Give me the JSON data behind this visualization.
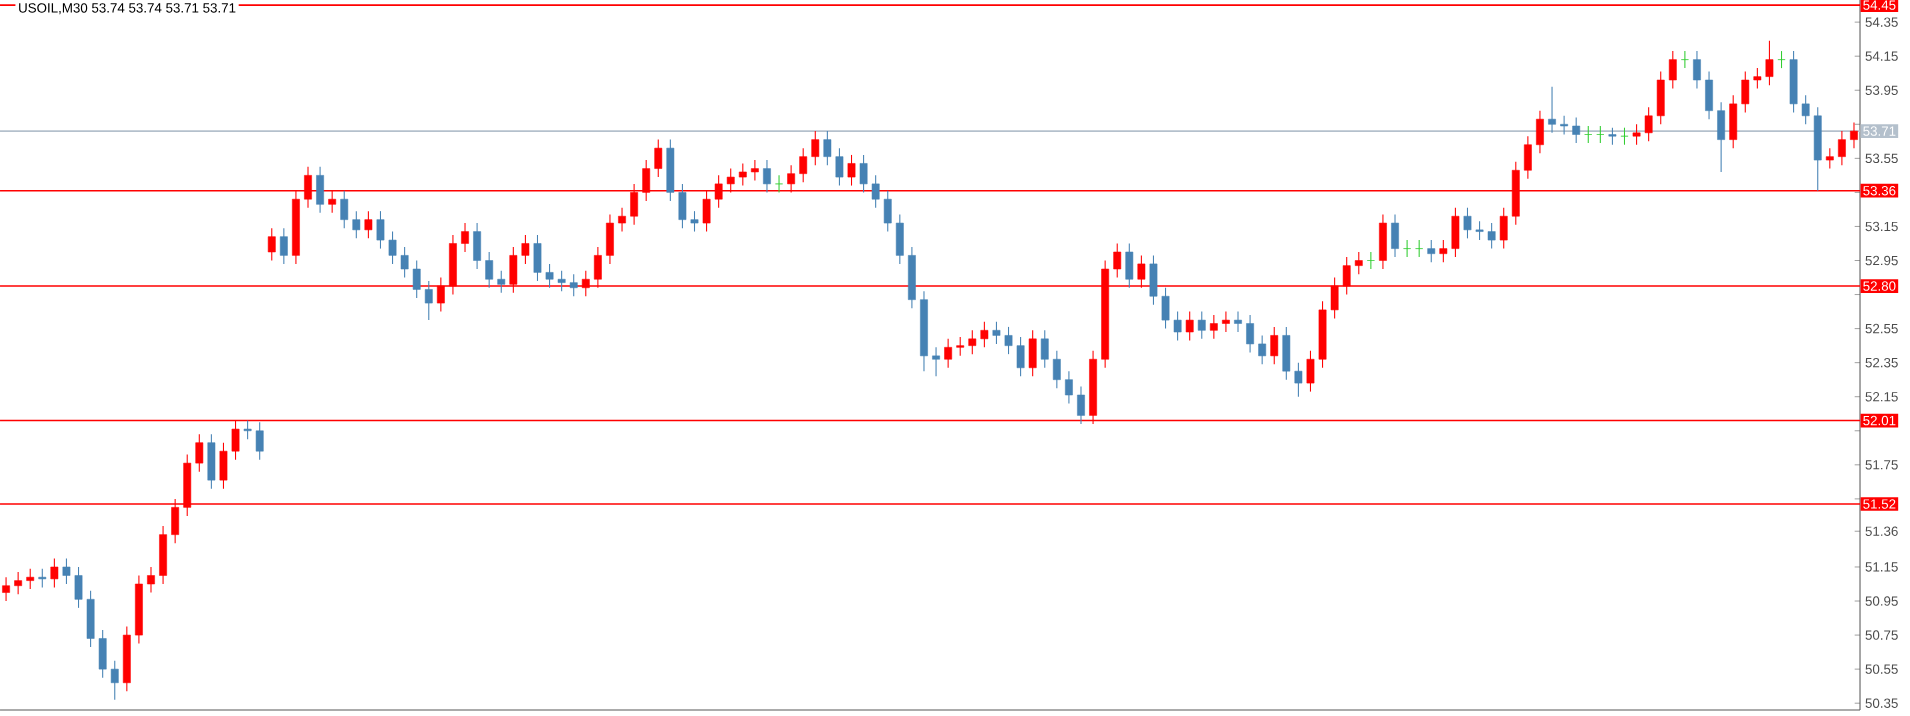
{
  "chart_data": {
    "type": "candlestick",
    "title": "USOIL,M30  53.74 53.74 53.71 53.71",
    "categories": [
      null,
      null,
      null,
      null,
      null,
      null,
      null,
      null,
      null,
      null,
      null,
      null,
      null,
      null,
      null,
      null,
      null,
      null,
      null,
      null,
      null,
      null,
      null,
      null,
      null,
      null,
      null,
      null,
      null,
      null,
      null,
      null,
      null,
      null,
      null,
      null,
      null,
      null,
      null,
      null,
      null,
      null,
      null,
      null,
      null,
      null,
      null,
      null,
      null,
      null,
      null,
      null,
      null,
      null,
      null,
      null,
      null,
      null,
      null,
      null,
      null,
      null,
      null,
      null,
      null,
      null,
      null,
      null,
      null,
      null,
      null,
      null,
      null,
      null,
      null,
      null,
      null,
      null,
      null,
      null,
      null,
      null,
      null,
      null,
      null,
      null,
      null,
      null,
      null,
      null,
      null,
      null,
      null,
      null,
      null,
      null,
      null,
      null,
      null,
      null,
      null,
      null,
      null,
      null,
      null,
      null,
      null,
      null,
      null,
      null,
      null,
      null,
      null,
      null,
      null,
      null,
      null,
      null,
      null,
      null,
      null,
      null,
      null,
      null,
      null,
      null,
      null,
      null,
      null,
      null,
      null,
      null,
      null,
      null,
      null,
      null,
      null,
      null,
      null,
      null,
      null,
      null,
      null,
      null,
      null,
      null,
      null,
      null,
      null,
      null,
      null,
      null,
      null,
      null
    ],
    "ohlc": [
      [
        51.0,
        51.09,
        50.95,
        51.04
      ],
      [
        51.04,
        51.12,
        50.99,
        51.07
      ],
      [
        51.07,
        51.14,
        51.02,
        51.09
      ],
      [
        51.09,
        51.14,
        51.03,
        51.08
      ],
      [
        51.08,
        51.2,
        51.03,
        51.15
      ],
      [
        51.15,
        51.2,
        51.05,
        51.1
      ],
      [
        51.1,
        51.15,
        50.91,
        50.96
      ],
      [
        50.96,
        51.01,
        50.68,
        50.73
      ],
      [
        50.73,
        50.78,
        50.5,
        50.55
      ],
      [
        50.55,
        50.6,
        50.37,
        50.47
      ],
      [
        50.47,
        50.8,
        50.42,
        50.75
      ],
      [
        50.75,
        51.1,
        50.7,
        51.05
      ],
      [
        51.05,
        51.15,
        51.0,
        51.1
      ],
      [
        51.1,
        51.39,
        51.05,
        51.34
      ],
      [
        51.34,
        51.55,
        51.29,
        51.5
      ],
      [
        51.5,
        51.81,
        51.45,
        51.76
      ],
      [
        51.76,
        51.93,
        51.71,
        51.88
      ],
      [
        51.88,
        51.93,
        51.61,
        51.66
      ],
      [
        51.66,
        51.88,
        51.61,
        51.83
      ],
      [
        51.83,
        52.01,
        51.78,
        51.96
      ],
      [
        51.96,
        52.01,
        51.9,
        51.95
      ],
      [
        51.95,
        52.0,
        51.78,
        51.83
      ],
      [
        53.0,
        53.14,
        52.95,
        53.09
      ],
      [
        53.09,
        53.14,
        52.93,
        52.98
      ],
      [
        52.98,
        53.36,
        52.93,
        53.31
      ],
      [
        53.31,
        53.5,
        53.26,
        53.45
      ],
      [
        53.45,
        53.5,
        53.23,
        53.28
      ],
      [
        53.28,
        53.36,
        53.23,
        53.31
      ],
      [
        53.31,
        53.36,
        53.14,
        53.19
      ],
      [
        53.19,
        53.24,
        53.08,
        53.13
      ],
      [
        53.13,
        53.24,
        53.08,
        53.19
      ],
      [
        53.19,
        53.24,
        53.02,
        53.07
      ],
      [
        53.07,
        53.12,
        52.93,
        52.98
      ],
      [
        52.98,
        53.03,
        52.85,
        52.9
      ],
      [
        52.9,
        52.95,
        52.73,
        52.78
      ],
      [
        52.78,
        52.83,
        52.6,
        52.7
      ],
      [
        52.7,
        52.85,
        52.65,
        52.8
      ],
      [
        52.8,
        53.1,
        52.75,
        53.05
      ],
      [
        53.05,
        53.17,
        53.0,
        53.12
      ],
      [
        53.12,
        53.17,
        52.9,
        52.95
      ],
      [
        52.95,
        53.0,
        52.79,
        52.84
      ],
      [
        52.84,
        52.89,
        52.76,
        52.81
      ],
      [
        52.81,
        53.03,
        52.76,
        52.98
      ],
      [
        52.98,
        53.1,
        52.93,
        53.05
      ],
      [
        53.05,
        53.1,
        52.83,
        52.88
      ],
      [
        52.88,
        52.93,
        52.79,
        52.84
      ],
      [
        52.84,
        52.89,
        52.77,
        52.82
      ],
      [
        52.82,
        52.87,
        52.74,
        52.79
      ],
      [
        52.79,
        52.89,
        52.74,
        52.84
      ],
      [
        52.84,
        53.03,
        52.79,
        52.98
      ],
      [
        52.98,
        53.22,
        52.93,
        53.17
      ],
      [
        53.17,
        53.26,
        53.12,
        53.21
      ],
      [
        53.21,
        53.4,
        53.16,
        53.35
      ],
      [
        53.35,
        53.54,
        53.3,
        53.49
      ],
      [
        53.49,
        53.66,
        53.44,
        53.61
      ],
      [
        53.61,
        53.66,
        53.3,
        53.35
      ],
      [
        53.35,
        53.4,
        53.14,
        53.19
      ],
      [
        53.19,
        53.24,
        53.12,
        53.17
      ],
      [
        53.17,
        53.36,
        53.12,
        53.31
      ],
      [
        53.31,
        53.45,
        53.26,
        53.4
      ],
      [
        53.4,
        53.49,
        53.35,
        53.44
      ],
      [
        53.44,
        53.52,
        53.39,
        53.47
      ],
      [
        53.47,
        53.54,
        53.42,
        53.49
      ],
      [
        53.49,
        53.54,
        53.35,
        53.4
      ],
      [
        53.4,
        53.45,
        53.35,
        53.4
      ],
      [
        53.4,
        53.51,
        53.35,
        53.46
      ],
      [
        53.46,
        53.61,
        53.41,
        53.56
      ],
      [
        53.56,
        53.71,
        53.51,
        53.66
      ],
      [
        53.66,
        53.71,
        53.51,
        53.56
      ],
      [
        53.56,
        53.61,
        53.39,
        53.44
      ],
      [
        53.44,
        53.57,
        53.39,
        53.52
      ],
      [
        53.52,
        53.57,
        53.35,
        53.4
      ],
      [
        53.4,
        53.45,
        53.26,
        53.31
      ],
      [
        53.31,
        53.36,
        53.12,
        53.17
      ],
      [
        53.17,
        53.22,
        52.93,
        52.98
      ],
      [
        52.98,
        53.03,
        52.67,
        52.72
      ],
      [
        52.72,
        52.77,
        52.3,
        52.39
      ],
      [
        52.39,
        52.44,
        52.27,
        52.37
      ],
      [
        52.37,
        52.49,
        52.32,
        52.44
      ],
      [
        52.44,
        52.5,
        52.39,
        52.45
      ],
      [
        52.45,
        52.54,
        52.4,
        52.49
      ],
      [
        52.49,
        52.59,
        52.44,
        52.54
      ],
      [
        52.54,
        52.59,
        52.46,
        52.51
      ],
      [
        52.51,
        52.56,
        52.4,
        52.45
      ],
      [
        52.45,
        52.5,
        52.27,
        52.32
      ],
      [
        52.32,
        52.54,
        52.27,
        52.49
      ],
      [
        52.49,
        52.54,
        52.32,
        52.37
      ],
      [
        52.37,
        52.42,
        52.2,
        52.25
      ],
      [
        52.25,
        52.3,
        52.11,
        52.16
      ],
      [
        52.16,
        52.21,
        51.99,
        52.04
      ],
      [
        52.04,
        52.42,
        51.99,
        52.37
      ],
      [
        52.37,
        52.95,
        52.32,
        52.9
      ],
      [
        52.9,
        53.05,
        52.85,
        53.0
      ],
      [
        53.0,
        53.05,
        52.79,
        52.84
      ],
      [
        52.84,
        52.98,
        52.79,
        52.93
      ],
      [
        52.93,
        52.98,
        52.69,
        52.74
      ],
      [
        52.74,
        52.79,
        52.55,
        52.6
      ],
      [
        52.6,
        52.65,
        52.48,
        52.53
      ],
      [
        52.53,
        52.65,
        52.48,
        52.6
      ],
      [
        52.6,
        52.65,
        52.49,
        52.54
      ],
      [
        52.54,
        52.63,
        52.49,
        52.58
      ],
      [
        52.58,
        52.65,
        52.53,
        52.6
      ],
      [
        52.6,
        52.65,
        52.53,
        52.58
      ],
      [
        52.58,
        52.63,
        52.41,
        52.46
      ],
      [
        52.46,
        52.51,
        52.34,
        52.39
      ],
      [
        52.39,
        52.56,
        52.34,
        52.51
      ],
      [
        52.51,
        52.56,
        52.25,
        52.3
      ],
      [
        52.3,
        52.35,
        52.15,
        52.23
      ],
      [
        52.23,
        52.42,
        52.18,
        52.37
      ],
      [
        52.37,
        52.71,
        52.32,
        52.66
      ],
      [
        52.66,
        52.85,
        52.61,
        52.8
      ],
      [
        52.8,
        52.97,
        52.75,
        52.92
      ],
      [
        52.92,
        53.0,
        52.87,
        52.95
      ],
      [
        52.95,
        53.0,
        52.9,
        52.95
      ],
      [
        52.95,
        53.22,
        52.9,
        53.17
      ],
      [
        53.17,
        53.22,
        52.97,
        53.02
      ],
      [
        53.02,
        53.07,
        52.97,
        53.02
      ],
      [
        53.02,
        53.07,
        52.97,
        53.02
      ],
      [
        53.02,
        53.07,
        52.94,
        52.99
      ],
      [
        52.99,
        53.07,
        52.94,
        53.02
      ],
      [
        53.02,
        53.26,
        52.97,
        53.21
      ],
      [
        53.21,
        53.26,
        53.08,
        53.13
      ],
      [
        53.13,
        53.18,
        53.07,
        53.12
      ],
      [
        53.12,
        53.17,
        53.02,
        53.07
      ],
      [
        53.07,
        53.26,
        53.02,
        53.21
      ],
      [
        53.21,
        53.53,
        53.16,
        53.48
      ],
      [
        53.48,
        53.68,
        53.43,
        53.63
      ],
      [
        53.63,
        53.83,
        53.58,
        53.78
      ],
      [
        53.78,
        53.97,
        53.7,
        53.75
      ],
      [
        53.75,
        53.8,
        53.69,
        53.74
      ],
      [
        53.74,
        53.79,
        53.64,
        53.69
      ],
      [
        53.69,
        53.74,
        53.64,
        53.69
      ],
      [
        53.69,
        53.74,
        53.64,
        53.69
      ],
      [
        53.69,
        53.73,
        53.63,
        53.68
      ],
      [
        53.68,
        53.73,
        53.63,
        53.68
      ],
      [
        53.68,
        53.75,
        53.63,
        53.7
      ],
      [
        53.7,
        53.85,
        53.65,
        53.8
      ],
      [
        53.8,
        54.06,
        53.75,
        54.01
      ],
      [
        54.01,
        54.18,
        53.96,
        54.13
      ],
      [
        54.13,
        54.18,
        54.08,
        54.13
      ],
      [
        54.13,
        54.18,
        53.96,
        54.01
      ],
      [
        54.01,
        54.06,
        53.78,
        53.83
      ],
      [
        53.83,
        53.88,
        53.47,
        53.66
      ],
      [
        53.66,
        53.92,
        53.61,
        53.87
      ],
      [
        53.87,
        54.06,
        53.82,
        54.01
      ],
      [
        54.01,
        54.08,
        53.96,
        54.03
      ],
      [
        54.03,
        54.24,
        53.98,
        54.13
      ],
      [
        54.13,
        54.18,
        54.08,
        54.13
      ],
      [
        54.13,
        54.18,
        53.82,
        53.87
      ],
      [
        53.87,
        53.92,
        53.75,
        53.8
      ],
      [
        53.8,
        53.85,
        53.36,
        53.54
      ],
      [
        53.54,
        53.61,
        53.49,
        53.56
      ],
      [
        53.56,
        53.71,
        53.51,
        53.66
      ],
      [
        53.66,
        53.76,
        53.61,
        53.71
      ]
    ],
    "colors": [
      "#ff0000",
      "#ff0000",
      "#ff0000",
      "#4682b4",
      "#ff0000",
      "#4682b4",
      "#4682b4",
      "#4682b4",
      "#4682b4",
      "#4682b4",
      "#ff0000",
      "#ff0000",
      "#ff0000",
      "#ff0000",
      "#ff0000",
      "#ff0000",
      "#ff0000",
      "#4682b4",
      "#ff0000",
      "#ff0000",
      "#4682b4",
      "#4682b4",
      "#ff0000",
      "#4682b4",
      "#ff0000",
      "#ff0000",
      "#4682b4",
      "#ff0000",
      "#4682b4",
      "#4682b4",
      "#ff0000",
      "#4682b4",
      "#4682b4",
      "#4682b4",
      "#4682b4",
      "#4682b4",
      "#ff0000",
      "#ff0000",
      "#ff0000",
      "#4682b4",
      "#4682b4",
      "#4682b4",
      "#ff0000",
      "#ff0000",
      "#4682b4",
      "#4682b4",
      "#4682b4",
      "#4682b4",
      "#ff0000",
      "#ff0000",
      "#ff0000",
      "#ff0000",
      "#ff0000",
      "#ff0000",
      "#ff0000",
      "#4682b4",
      "#4682b4",
      "#4682b4",
      "#ff0000",
      "#ff0000",
      "#ff0000",
      "#ff0000",
      "#ff0000",
      "#4682b4",
      "#32cd32",
      "#ff0000",
      "#ff0000",
      "#ff0000",
      "#4682b4",
      "#4682b4",
      "#ff0000",
      "#4682b4",
      "#4682b4",
      "#4682b4",
      "#4682b4",
      "#4682b4",
      "#4682b4",
      "#4682b4",
      "#ff0000",
      "#ff0000",
      "#ff0000",
      "#ff0000",
      "#4682b4",
      "#4682b4",
      "#4682b4",
      "#ff0000",
      "#4682b4",
      "#4682b4",
      "#4682b4",
      "#4682b4",
      "#ff0000",
      "#ff0000",
      "#ff0000",
      "#4682b4",
      "#ff0000",
      "#4682b4",
      "#4682b4",
      "#4682b4",
      "#ff0000",
      "#4682b4",
      "#ff0000",
      "#ff0000",
      "#4682b4",
      "#4682b4",
      "#4682b4",
      "#ff0000",
      "#4682b4",
      "#4682b4",
      "#ff0000",
      "#ff0000",
      "#ff0000",
      "#ff0000",
      "#ff0000",
      "#32cd32",
      "#ff0000",
      "#4682b4",
      "#32cd32",
      "#32cd32",
      "#4682b4",
      "#ff0000",
      "#ff0000",
      "#4682b4",
      "#4682b4",
      "#4682b4",
      "#ff0000",
      "#ff0000",
      "#ff0000",
      "#ff0000",
      "#4682b4",
      "#4682b4",
      "#4682b4",
      "#32cd32",
      "#32cd32",
      "#4682b4",
      "#32cd32",
      "#ff0000",
      "#ff0000",
      "#ff0000",
      "#ff0000",
      "#32cd32",
      "#4682b4",
      "#4682b4",
      "#4682b4",
      "#ff0000",
      "#ff0000",
      "#ff0000",
      "#ff0000",
      "#32cd32",
      "#4682b4",
      "#4682b4",
      "#4682b4",
      "#ff0000",
      "#ff0000",
      "#ff0000"
    ],
    "ylim": [
      50.31,
      54.48
    ],
    "yticks": [
      54.35,
      54.15,
      53.95,
      {
        "value": 53.75,
        "label": null
      },
      53.55,
      {
        "value": 53.35,
        "label": null
      },
      53.15,
      52.95,
      {
        "value": 52.75,
        "label": null
      },
      52.55,
      52.35,
      52.15,
      {
        "value": 51.95,
        "label": null
      },
      51.75,
      {
        "value": 51.55,
        "label": null
      },
      51.36,
      51.15,
      50.95,
      50.75,
      50.55,
      50.35
    ],
    "tick_labels": "y",
    "ref_lines": [
      {
        "axis": "y",
        "value": 54.45,
        "label": "54.45",
        "color": "#ff0000"
      },
      {
        "axis": "y",
        "value": 53.71,
        "label": "53.71",
        "color": "#b4c0cc"
      },
      {
        "axis": "y",
        "value": 53.36,
        "label": "53.36",
        "color": "#ff0000"
      },
      {
        "axis": "y",
        "value": 52.8,
        "label": "52.80",
        "color": "#ff0000"
      },
      {
        "axis": "y",
        "value": 52.01,
        "label": "52.01",
        "color": "#ff0000"
      },
      {
        "axis": "y",
        "value": 51.52,
        "label": "51.52",
        "color": "#ff0000"
      }
    ]
  }
}
